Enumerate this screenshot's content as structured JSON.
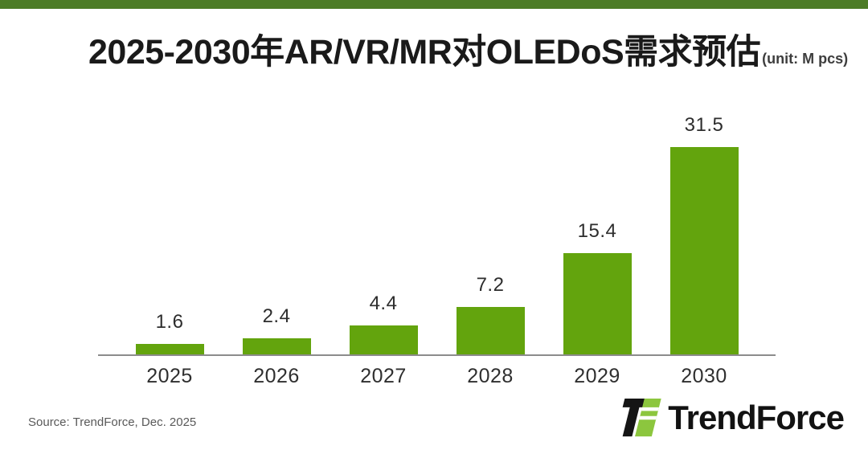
{
  "page": {
    "accent_bar_color": "#4c7c26",
    "background_color": "#ffffff"
  },
  "header": {
    "title": "2025-2030年AR/VR/MR对OLEDoS需求预估",
    "unit_label": "(unit: M pcs)"
  },
  "chart_data": {
    "type": "bar",
    "categories": [
      "2025",
      "2026",
      "2027",
      "2028",
      "2029",
      "2030"
    ],
    "values": [
      1.6,
      2.4,
      4.4,
      7.2,
      15.4,
      31.5
    ],
    "title": "2025-2030年AR/VR/MR对OLEDoS需求预估",
    "unit": "M pcs",
    "xlabel": "",
    "ylabel": "",
    "ylim": [
      0,
      35
    ],
    "grid": false,
    "legend": "none",
    "bar_color": "#63a40d",
    "value_label_color": "#2d2d2d",
    "axis_line_color": "#8c8c8c"
  },
  "footer": {
    "source": "Source: TrendForce, Dec. 2025",
    "logo_text": "TrendForce",
    "logo_green": "#8cc63e",
    "logo_black": "#151515"
  }
}
